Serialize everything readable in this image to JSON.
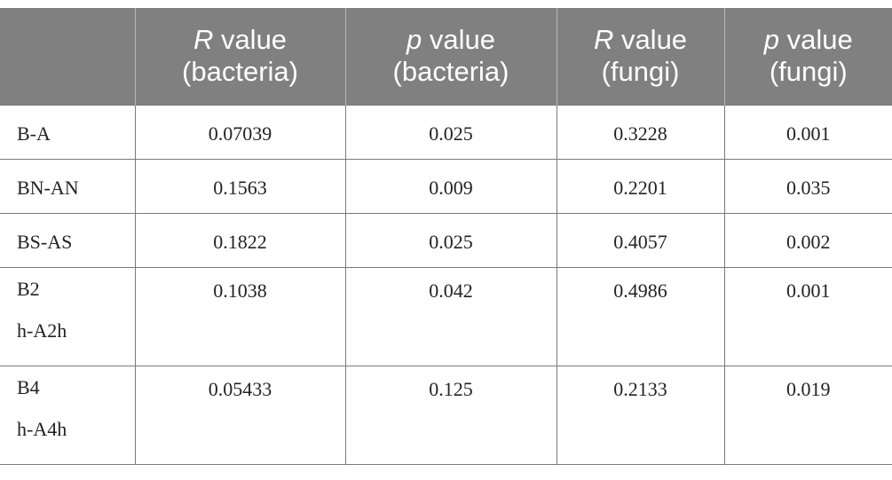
{
  "table": {
    "headers": [
      {
        "italic": "",
        "rest": "",
        "line2": ""
      },
      {
        "italic": "R",
        "rest": " value",
        "line2": "(bacteria)"
      },
      {
        "italic": "p",
        "rest": " value",
        "line2": "(bacteria)"
      },
      {
        "italic": "R",
        "rest": " value",
        "line2": "(fungi)"
      },
      {
        "italic": "p",
        "rest": " value",
        "line2": "(fungi)"
      }
    ],
    "rows": [
      {
        "label": [
          "B-A"
        ],
        "r_bacteria": "0.07039",
        "p_bacteria": "0.025",
        "r_fungi": "0.3228",
        "p_fungi": "0.001"
      },
      {
        "label": [
          "BN-AN"
        ],
        "r_bacteria": "0.1563",
        "p_bacteria": "0.009",
        "r_fungi": "0.2201",
        "p_fungi": "0.035"
      },
      {
        "label": [
          "BS-AS"
        ],
        "r_bacteria": "0.1822",
        "p_bacteria": "0.025",
        "r_fungi": "0.4057",
        "p_fungi": "0.002"
      },
      {
        "label": [
          "B2",
          "h-A2h"
        ],
        "r_bacteria": "0.1038",
        "p_bacteria": "0.042",
        "r_fungi": "0.4986",
        "p_fungi": "0.001"
      },
      {
        "label": [
          "B4",
          "h-A4h"
        ],
        "r_bacteria": "0.05433",
        "p_bacteria": "0.125",
        "r_fungi": "0.2133",
        "p_fungi": "0.019"
      }
    ]
  }
}
